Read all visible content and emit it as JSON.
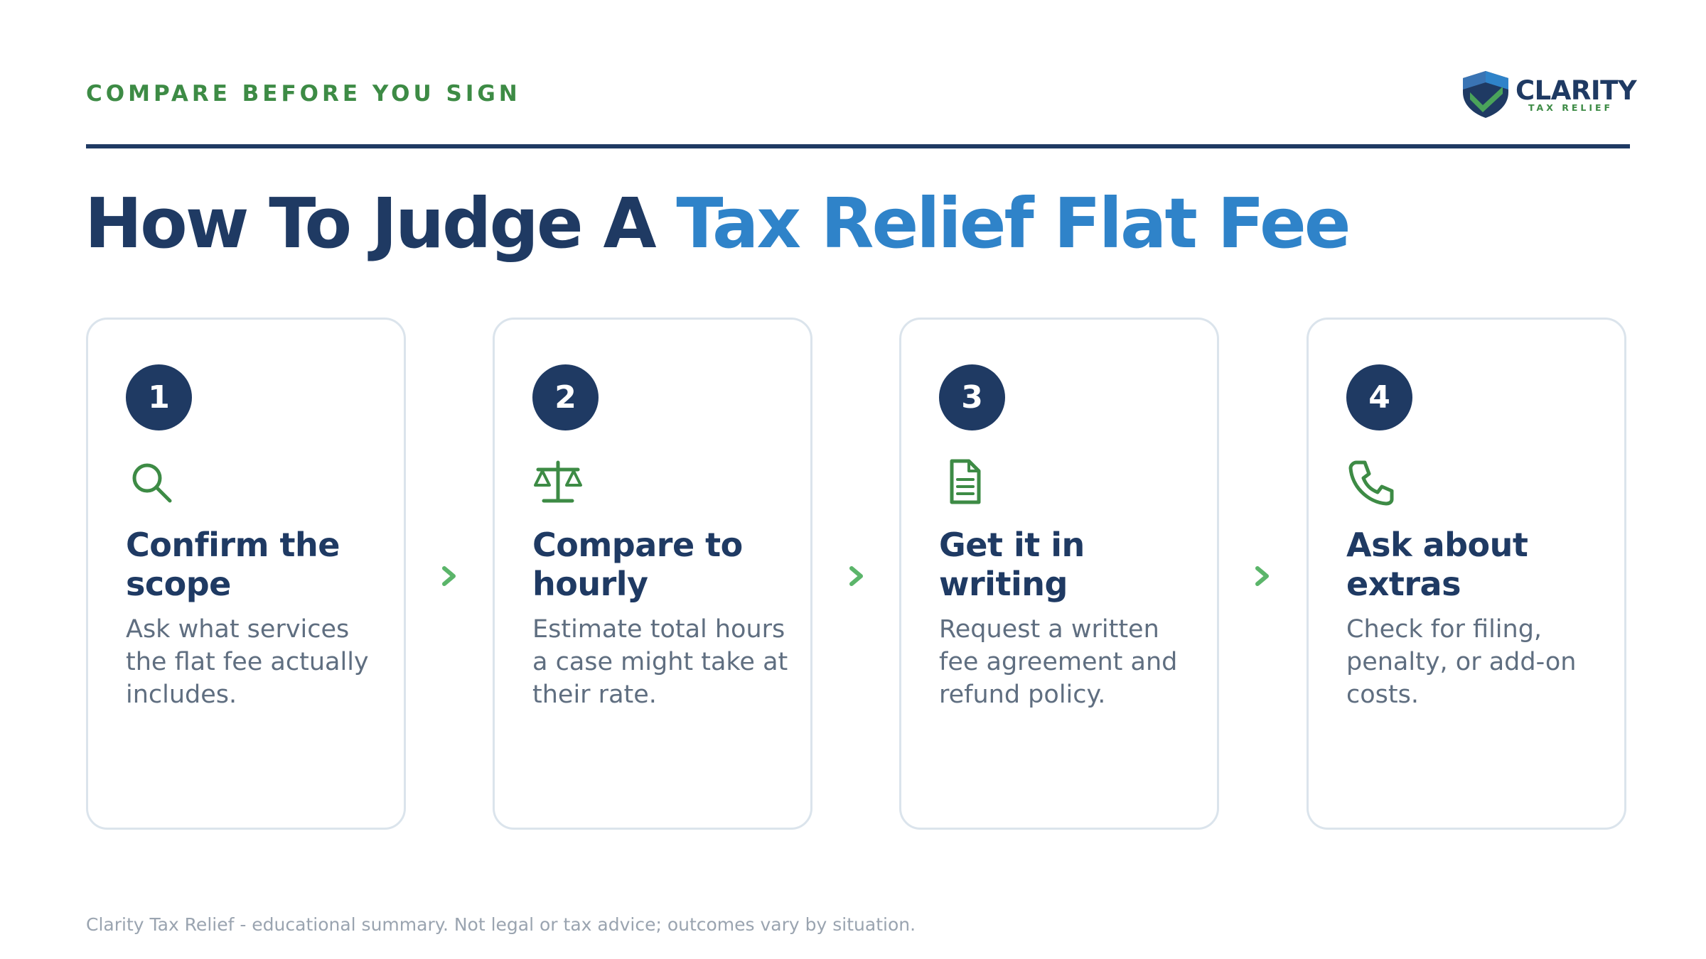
{
  "header": {
    "eyebrow": "COMPARE BEFORE YOU SIGN",
    "logo": {
      "word": "CLARITY",
      "sub": "TAX RELIEF"
    }
  },
  "title": {
    "lead": "How To Judge A",
    "accent": "Tax Relief Flat Fee"
  },
  "colors": {
    "navy": "#1f3a63",
    "blue": "#2f83c9",
    "green": "#3d8b45",
    "chevron_green": "#5bb56a"
  },
  "steps": [
    {
      "number": "1",
      "icon": "search-icon",
      "title": "Confirm the scope",
      "desc": "Ask what services the flat fee actually includes."
    },
    {
      "number": "2",
      "icon": "scale-icon",
      "title": "Compare to hourly",
      "desc": "Estimate total hours a case might take at their rate."
    },
    {
      "number": "3",
      "icon": "document-icon",
      "title": "Get it in writing",
      "desc": "Request a written fee agreement and refund policy."
    },
    {
      "number": "4",
      "icon": "phone-icon",
      "title": "Ask about extras",
      "desc": "Check for filing, penalty, or add-on costs."
    }
  ],
  "footer": "Clarity Tax Relief - educational summary. Not legal or tax advice; outcomes vary by situation."
}
